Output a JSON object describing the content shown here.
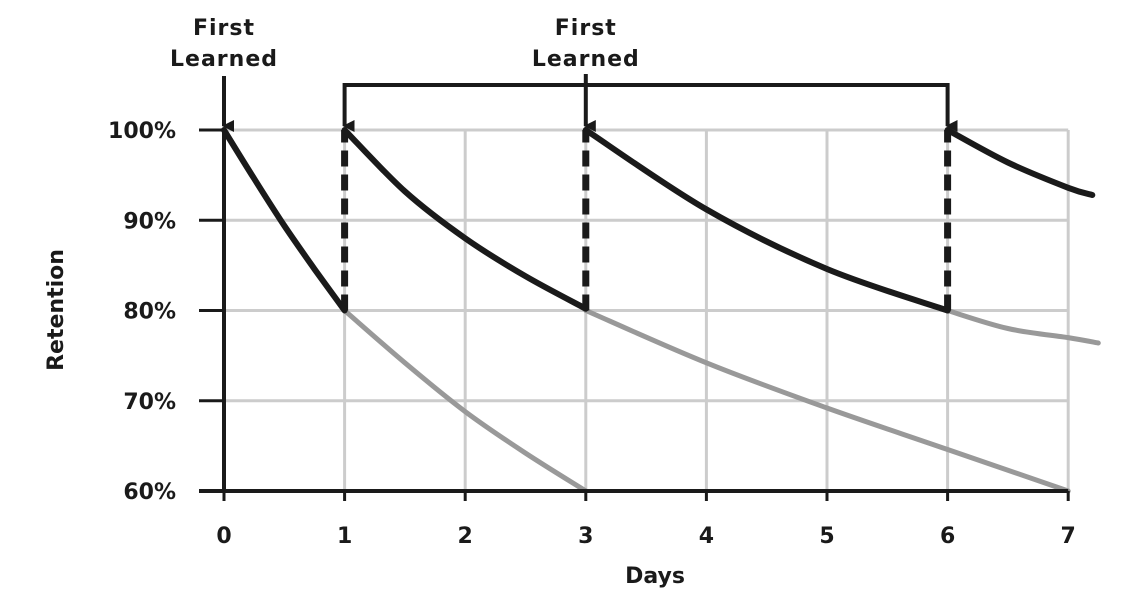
{
  "chart_data": {
    "type": "line",
    "xlabel": "Days",
    "ylabel": "Retention",
    "x_ticks": [
      0,
      1,
      2,
      3,
      4,
      5,
      6,
      7
    ],
    "y_ticks": [
      "100%",
      "90%",
      "80%",
      "70%",
      "60%"
    ],
    "xlim": [
      0,
      7.25
    ],
    "ylim": [
      60,
      100
    ],
    "grid": true,
    "annotations": [
      {
        "text_line1": "First",
        "text_line2": "Learned",
        "x": 0
      },
      {
        "text_line1": "First",
        "text_line2": "Learned",
        "x": 3
      }
    ],
    "review_days": [
      1,
      3,
      6
    ],
    "review_bracket_days": [
      1,
      3,
      6
    ],
    "colors": {
      "review_curve": "#1a1a1a",
      "forgetting_curve": "#999999",
      "grid": "#cccccc",
      "axis": "#1a1a1a"
    },
    "series": [
      {
        "style": "review",
        "x": [
          0,
          0.25,
          0.5,
          0.75,
          1
        ],
        "y": [
          100,
          94.6,
          89.4,
          84.6,
          80
        ]
      },
      {
        "style": "review",
        "x": [
          1,
          1.5,
          2,
          2.5,
          3
        ],
        "y": [
          100,
          93.2,
          88,
          83.8,
          80.2
        ]
      },
      {
        "style": "review",
        "x": [
          3,
          4,
          5,
          6
        ],
        "y": [
          100,
          91.2,
          84.6,
          80
        ]
      },
      {
        "style": "review",
        "x": [
          6,
          6.5,
          7,
          7.2
        ],
        "y": [
          100,
          96.4,
          93.6,
          92.8
        ]
      },
      {
        "style": "forgetting",
        "x": [
          1,
          1.5,
          2,
          2.5,
          3
        ],
        "y": [
          80,
          74.2,
          68.8,
          64.2,
          60
        ]
      },
      {
        "style": "forgetting",
        "x": [
          3,
          4,
          5,
          6,
          7
        ],
        "y": [
          80,
          74.2,
          69.2,
          64.6,
          60
        ]
      },
      {
        "style": "forgetting",
        "x": [
          6,
          6.5,
          7,
          7.25
        ],
        "y": [
          80,
          78,
          77,
          76.4
        ]
      }
    ]
  }
}
